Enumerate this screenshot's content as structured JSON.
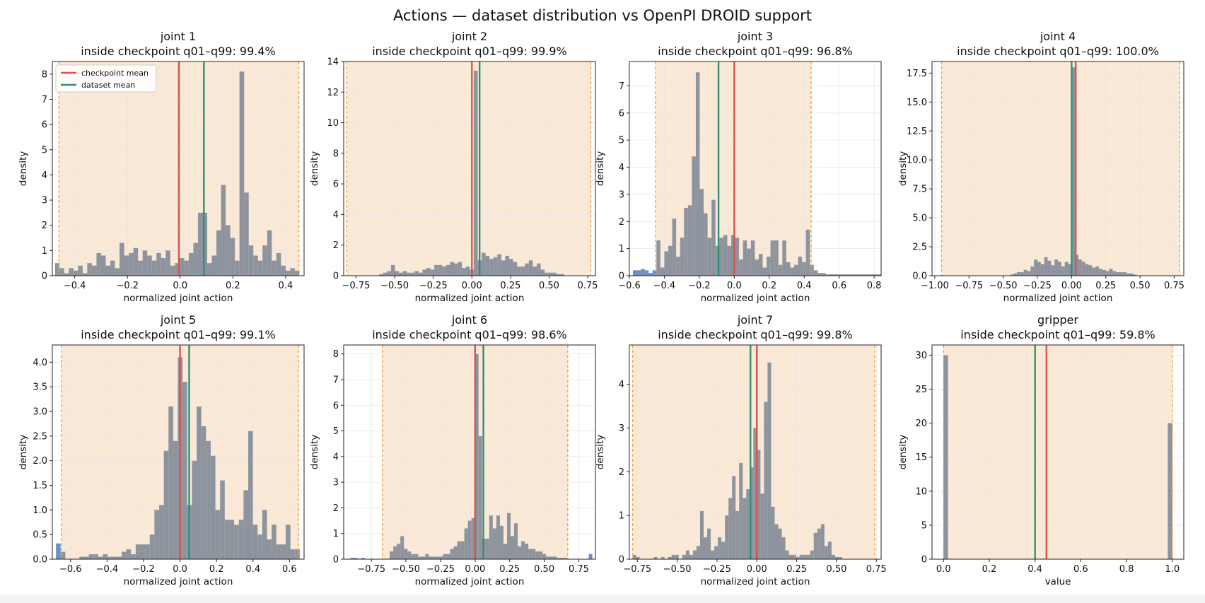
{
  "figure": {
    "title": "Actions — dataset distribution vs OpenPI DROID support",
    "legend": {
      "items": [
        "checkpoint mean",
        "dataset mean"
      ],
      "placement": "upper-left of first panel"
    }
  },
  "colors": {
    "background": "#ffffff",
    "support_band": "#fae9d6",
    "support_edge": "#f0a040",
    "bar_inside": "#8e949e",
    "bar_outside": "#6f8fc2",
    "checkpoint_mean": "#d9534f",
    "dataset_mean": "#2e8f75",
    "grid": "#e6e6e6",
    "text": "#111111"
  },
  "chart_data": [
    {
      "type": "bar",
      "title": "joint 1",
      "subtitle": "inside checkpoint q01–q99: 99.4%",
      "xlabel": "normalized joint action",
      "ylabel": "density",
      "xlim": [
        -0.485,
        0.47
      ],
      "ylim": [
        0,
        8.5
      ],
      "xticks": [
        -0.4,
        -0.2,
        0.0,
        0.2,
        0.4
      ],
      "xtick_labels": [
        "−0.4",
        "−0.2",
        "0.0",
        "0.2",
        "0.4"
      ],
      "yticks": [
        0,
        1,
        2,
        3,
        4,
        5,
        6,
        7,
        8
      ],
      "ytick_labels": [
        "0",
        "1",
        "2",
        "3",
        "4",
        "5",
        "6",
        "7",
        "8"
      ],
      "support": [
        -0.46,
        0.45
      ],
      "checkpoint_mean": -0.005,
      "dataset_mean": 0.09,
      "show_legend": true,
      "bins": {
        "start": -0.475,
        "width": 0.0175
      },
      "values": [
        0.5,
        0.3,
        0.1,
        0.3,
        0.2,
        0.4,
        0.1,
        0.5,
        0.4,
        0.9,
        0.8,
        0.4,
        0.6,
        0.3,
        1.3,
        0.8,
        0.9,
        1.1,
        0.6,
        1.0,
        0.8,
        0.6,
        0.9,
        0.7,
        1.0,
        0.4,
        0.5,
        0.7,
        0.6,
        0.9,
        1.3,
        2.5,
        2.5,
        0.5,
        0.8,
        1.8,
        3.6,
        2.0,
        1.5,
        0.6,
        8.1,
        3.3,
        1.2,
        0.8,
        0.6,
        1.2,
        1.8,
        0.6,
        0.9,
        0.4,
        0.2,
        0.3,
        0.2
      ],
      "outside_bins": []
    },
    {
      "type": "bar",
      "title": "joint 2",
      "subtitle": "inside checkpoint q01–q99: 99.9%",
      "xlabel": "normalized joint action",
      "ylabel": "density",
      "xlim": [
        -0.83,
        0.8
      ],
      "ylim": [
        0,
        14
      ],
      "xticks": [
        -0.75,
        -0.5,
        -0.25,
        0.0,
        0.25,
        0.5,
        0.75
      ],
      "xtick_labels": [
        "−0.75",
        "−0.50",
        "−0.25",
        "0.00",
        "0.25",
        "0.50",
        "0.75"
      ],
      "yticks": [
        0,
        2,
        4,
        6,
        8,
        10,
        12,
        14
      ],
      "ytick_labels": [
        "0",
        "2",
        "4",
        "6",
        "8",
        "10",
        "12",
        "14"
      ],
      "support": [
        -0.81,
        0.77
      ],
      "checkpoint_mean": 0.0,
      "dataset_mean": 0.05,
      "show_legend": false,
      "bins": {
        "start": -0.6,
        "width": 0.0255
      },
      "values": [
        0.1,
        0.2,
        0.3,
        0.7,
        0.3,
        0.2,
        0.3,
        0.2,
        0.2,
        0.3,
        0.2,
        0.4,
        0.5,
        0.4,
        0.7,
        0.7,
        0.6,
        0.7,
        0.9,
        0.8,
        0.9,
        0.5,
        0.6,
        0.4,
        13.4,
        1.0,
        1.5,
        1.3,
        1.1,
        1.2,
        1.4,
        1.0,
        1.3,
        1.1,
        0.9,
        0.6,
        0.6,
        0.8,
        1.0,
        0.6,
        0.8,
        0.4,
        0.2,
        0.2,
        0.2,
        0.1,
        0.1
      ],
      "outside_bins": []
    },
    {
      "type": "bar",
      "title": "joint 3",
      "subtitle": "inside checkpoint q01–q99: 96.8%",
      "xlabel": "normalized joint action",
      "ylabel": "density",
      "xlim": [
        -0.6,
        0.84
      ],
      "ylim": [
        0,
        7.9
      ],
      "xticks": [
        -0.6,
        -0.4,
        -0.2,
        0.0,
        0.2,
        0.4,
        0.6,
        0.8
      ],
      "xtick_labels": [
        "−0.6",
        "−0.4",
        "−0.2",
        "0.0",
        "0.2",
        "0.4",
        "0.6",
        "0.8"
      ],
      "yticks": [
        0,
        1,
        2,
        3,
        4,
        5,
        6,
        7
      ],
      "ytick_labels": [
        "0",
        "1",
        "2",
        "3",
        "4",
        "5",
        "6",
        "7"
      ],
      "support": [
        -0.45,
        0.44
      ],
      "checkpoint_mean": 0.0,
      "dataset_mean": -0.09,
      "show_legend": false,
      "bins": {
        "start": -0.58,
        "width": 0.0225
      },
      "values": [
        0.2,
        0.2,
        0.25,
        0.2,
        0.1,
        0.2,
        1.3,
        0.3,
        0.9,
        1.1,
        2.1,
        0.7,
        1.4,
        2.5,
        2.6,
        4.4,
        7.5,
        3.2,
        2.3,
        1.4,
        2.8,
        1.1,
        1.4,
        1.5,
        1.1,
        1.5,
        1.4,
        0.6,
        1.3,
        1.0,
        1.3,
        0.6,
        0.8,
        0.3,
        0.7,
        1.3,
        1.3,
        0.4,
        1.3,
        0.5,
        0.3,
        0.4,
        0.7,
        0.5,
        1.7,
        0.4,
        0.2,
        0.1,
        0.1,
        0.05,
        0.05,
        0.05,
        0.05,
        0.05,
        0.05,
        0.05,
        0.05,
        0.05,
        0.05,
        0.05,
        0.05,
        0.05,
        0.05,
        0.05,
        0.05
      ],
      "outside_bins": [
        0,
        1,
        2,
        3,
        4,
        5
      ]
    },
    {
      "type": "bar",
      "title": "joint 4",
      "subtitle": "inside checkpoint q01–q99: 100.0%",
      "xlabel": "normalized joint action",
      "ylabel": "density",
      "xlim": [
        -1.02,
        0.82
      ],
      "ylim": [
        0,
        18.5
      ],
      "xticks": [
        -1.0,
        -0.75,
        -0.5,
        -0.25,
        0.0,
        0.25,
        0.5,
        0.75
      ],
      "xtick_labels": [
        "−1.00",
        "−0.75",
        "−0.50",
        "−0.25",
        "0.00",
        "0.25",
        "0.50",
        "0.75"
      ],
      "yticks": [
        0,
        2.5,
        5.0,
        7.5,
        10.0,
        12.5,
        15.0,
        17.5
      ],
      "ytick_labels": [
        "0.0",
        "2.5",
        "5.0",
        "7.5",
        "10.0",
        "12.5",
        "15.0",
        "17.5"
      ],
      "support": [
        -0.95,
        0.79
      ],
      "checkpoint_mean": 0.03,
      "dataset_mean": 0.0,
      "show_legend": false,
      "bins": {
        "start": -0.45,
        "width": 0.025
      },
      "values": [
        0.1,
        0.2,
        0.3,
        0.3,
        0.5,
        0.4,
        0.8,
        1.4,
        1.2,
        1.0,
        1.6,
        1.3,
        0.9,
        1.4,
        1.2,
        0.8,
        1.2,
        1.0,
        18.0,
        1.8,
        1.4,
        1.2,
        1.0,
        0.9,
        0.7,
        0.8,
        0.6,
        0.5,
        0.4,
        0.6,
        0.4,
        0.3,
        0.3,
        0.3,
        0.2,
        0.2,
        0.1
      ],
      "outside_bins": []
    },
    {
      "type": "bar",
      "title": "joint 5",
      "subtitle": "inside checkpoint q01–q99: 99.1%",
      "xlabel": "normalized joint action",
      "ylabel": "density",
      "xlim": [
        -0.7,
        0.68
      ],
      "ylim": [
        0,
        4.35
      ],
      "xticks": [
        -0.6,
        -0.4,
        -0.2,
        0.0,
        0.2,
        0.4,
        0.6
      ],
      "xtick_labels": [
        "−0.6",
        "−0.4",
        "−0.2",
        "0.0",
        "0.2",
        "0.4",
        "0.6"
      ],
      "yticks": [
        0,
        0.5,
        1.0,
        1.5,
        2.0,
        2.5,
        3.0,
        3.5,
        4.0
      ],
      "ytick_labels": [
        "0.0",
        "0.5",
        "1.0",
        "1.5",
        "2.0",
        "2.5",
        "3.0",
        "3.5",
        "4.0"
      ],
      "support": [
        -0.65,
        0.65
      ],
      "checkpoint_mean": 0.0,
      "dataset_mean": 0.05,
      "show_legend": false,
      "bins": {
        "start": -0.68,
        "width": 0.0257
      },
      "values": [
        0.32,
        0.15,
        0.0,
        0.0,
        0.0,
        0.05,
        0.05,
        0.1,
        0.1,
        0.05,
        0.1,
        0.05,
        0.05,
        0.05,
        0.15,
        0.2,
        0.1,
        0.3,
        0.3,
        0.3,
        0.5,
        1.0,
        1.1,
        2.2,
        3.1,
        2.4,
        4.1,
        3.6,
        1.1,
        2.0,
        3.1,
        2.7,
        2.4,
        2.1,
        1.0,
        1.6,
        0.8,
        0.8,
        0.7,
        0.8,
        1.4,
        2.6,
        0.7,
        0.5,
        1.0,
        0.4,
        0.7,
        0.3,
        0.3,
        0.7,
        0.2,
        0.2,
        0.0,
        0.0,
        0.0,
        0.05,
        0.05,
        0.0,
        0.0,
        0.0,
        0.0,
        0.0,
        0.0,
        0.6,
        0.1
      ],
      "outside_bins": [
        0
      ]
    },
    {
      "type": "bar",
      "title": "joint 6",
      "subtitle": "inside checkpoint q01–q99: 98.6%",
      "xlabel": "normalized joint action",
      "ylabel": "density",
      "xlim": [
        -0.95,
        0.87
      ],
      "ylim": [
        0,
        8.35
      ],
      "xticks": [
        -0.75,
        -0.5,
        -0.25,
        0.0,
        0.25,
        0.5,
        0.75
      ],
      "xtick_labels": [
        "−0.75",
        "−0.50",
        "−0.25",
        "0.00",
        "0.25",
        "0.50",
        "0.75"
      ],
      "yticks": [
        0,
        1,
        2,
        3,
        4,
        5,
        6,
        7,
        8
      ],
      "ytick_labels": [
        "0",
        "1",
        "2",
        "3",
        "4",
        "5",
        "6",
        "7",
        "8"
      ],
      "support": [
        -0.67,
        0.67
      ],
      "checkpoint_mean": 0.0,
      "dataset_mean": 0.06,
      "show_legend": false,
      "bins": {
        "start": -0.9,
        "width": 0.0257
      },
      "values": [
        0.05,
        0.05,
        0.0,
        0.05,
        0.0,
        0.0,
        0.0,
        0.0,
        0.0,
        0.0,
        0.0,
        0.3,
        0.5,
        0.6,
        0.9,
        0.4,
        0.3,
        0.2,
        0.2,
        0.1,
        0.1,
        0.2,
        0.1,
        0.1,
        0.1,
        0.1,
        0.2,
        0.2,
        0.4,
        0.5,
        0.7,
        0.7,
        1.2,
        1.5,
        1.6,
        8.0,
        4.8,
        0.8,
        0.8,
        1.7,
        1.2,
        1.7,
        1.3,
        0.6,
        1.8,
        0.9,
        1.4,
        0.5,
        0.7,
        0.6,
        0.4,
        0.4,
        0.3,
        0.3,
        0.2,
        0.1,
        0.1,
        0.1,
        0.05,
        0.05,
        0.05,
        0.0,
        0.0,
        0.0,
        0.0,
        0.0,
        0.0,
        0.2
      ],
      "outside_bins": [
        0,
        1,
        2,
        3,
        67
      ]
    },
    {
      "type": "bar",
      "title": "joint 7",
      "subtitle": "inside checkpoint q01–q99: 99.8%",
      "xlabel": "normalized joint action",
      "ylabel": "density",
      "xlim": [
        -0.8,
        0.78
      ],
      "ylim": [
        0,
        4.9
      ],
      "xticks": [
        -0.75,
        -0.5,
        -0.25,
        0.0,
        0.25,
        0.5,
        0.75
      ],
      "xtick_labels": [
        "−0.75",
        "−0.50",
        "−0.25",
        "0.00",
        "0.25",
        "0.50",
        "0.75"
      ],
      "yticks": [
        0,
        1,
        2,
        3,
        4
      ],
      "ytick_labels": [
        "0",
        "1",
        "2",
        "3",
        "4"
      ],
      "support": [
        -0.78,
        0.74
      ],
      "checkpoint_mean": 0.0,
      "dataset_mean": -0.04,
      "show_legend": false,
      "bins": {
        "start": -0.78,
        "width": 0.0223
      },
      "values": [
        0.1,
        0.05,
        0.0,
        0.0,
        0.0,
        0.0,
        0.05,
        0.0,
        0.05,
        0.0,
        0.05,
        0.1,
        0.1,
        0.0,
        0.1,
        0.2,
        0.1,
        0.2,
        0.3,
        1.1,
        0.5,
        0.7,
        0.2,
        0.3,
        0.5,
        0.4,
        1.0,
        1.4,
        1.9,
        1.1,
        2.2,
        1.4,
        1.6,
        2.1,
        3.0,
        2.5,
        1.5,
        3.6,
        4.5,
        1.2,
        0.8,
        0.7,
        0.5,
        0.2,
        0.1,
        0.1,
        0.05,
        0.1,
        0.1,
        0.1,
        0.2,
        0.6,
        0.7,
        0.8,
        0.3,
        0.4,
        0.1,
        0.05,
        0.05,
        0.0
      ],
      "outside_bins": []
    },
    {
      "type": "bar",
      "title": "gripper",
      "subtitle": "inside checkpoint q01–q99: 59.8%",
      "xlabel": "value",
      "ylabel": "density",
      "xlim": [
        -0.05,
        1.05
      ],
      "ylim": [
        0,
        31.5
      ],
      "xticks": [
        0.0,
        0.2,
        0.4,
        0.6,
        0.8,
        1.0
      ],
      "xtick_labels": [
        "0.0",
        "0.2",
        "0.4",
        "0.6",
        "0.8",
        "1.0"
      ],
      "yticks": [
        0,
        5,
        10,
        15,
        20,
        25,
        30
      ],
      "ytick_labels": [
        "0",
        "5",
        "10",
        "15",
        "20",
        "25",
        "30"
      ],
      "support": [
        0.0,
        1.0
      ],
      "checkpoint_mean": 0.45,
      "dataset_mean": 0.4,
      "show_legend": false,
      "bins": {
        "start": 0.0,
        "width": 0.02
      },
      "values": [
        30.0,
        0,
        0,
        0,
        0,
        0,
        0,
        0,
        0,
        0,
        0,
        0,
        0,
        0,
        0,
        0,
        0,
        0,
        0,
        0,
        0,
        0,
        0,
        0,
        0,
        0,
        0,
        0,
        0,
        0,
        0,
        0,
        0,
        0,
        0,
        0,
        0,
        0,
        0,
        0,
        0,
        0,
        0,
        0,
        0,
        0,
        0,
        0,
        0,
        20.0
      ],
      "outside_bins": []
    }
  ]
}
